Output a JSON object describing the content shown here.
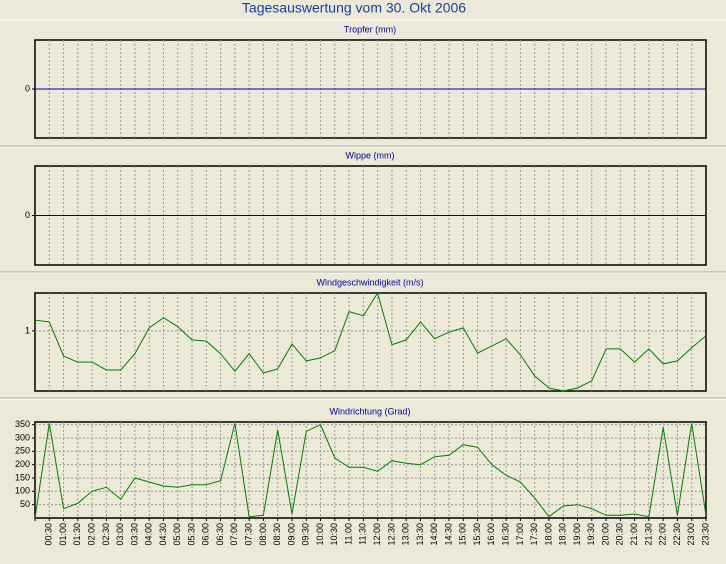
{
  "title": "Tagesauswertung vom 30. Okt 2006",
  "chart_data": [
    {
      "type": "line",
      "title": "Tropfer (mm)",
      "color": "#0000a0",
      "grid": true,
      "ylim": [
        -1,
        1
      ],
      "yticks": [
        0
      ],
      "values": [
        0,
        0,
        0,
        0,
        0,
        0,
        0,
        0,
        0,
        0,
        0,
        0,
        0,
        0,
        0,
        0,
        0,
        0,
        0,
        0,
        0,
        0,
        0,
        0,
        0,
        0,
        0,
        0,
        0,
        0,
        0,
        0,
        0,
        0,
        0,
        0,
        0,
        0,
        0,
        0,
        0,
        0,
        0,
        0,
        0,
        0,
        0,
        0
      ]
    },
    {
      "type": "line",
      "title": "Wippe (mm)",
      "color": "#0000a0",
      "grid": true,
      "ylim": [
        -1,
        1
      ],
      "yticks": [
        0
      ],
      "values": [
        0,
        0,
        0,
        0,
        0,
        0,
        0,
        0,
        0,
        0,
        0,
        0,
        0,
        0,
        0,
        0,
        0,
        0,
        0,
        0,
        0,
        0,
        0,
        0,
        0,
        0,
        0,
        0,
        0,
        0,
        0,
        0,
        0,
        0,
        0,
        0,
        0,
        0,
        0,
        0,
        0,
        0,
        0,
        0,
        0,
        0,
        0,
        0
      ]
    },
    {
      "type": "line",
      "title": "Windgeschwindigkeit (m/s)",
      "color": "#008000",
      "grid": true,
      "ylim": [
        0,
        1.63
      ],
      "yticks": [
        1
      ],
      "values": [
        1.18,
        1.15,
        0.58,
        0.48,
        0.48,
        0.35,
        0.35,
        0.62,
        1.05,
        1.22,
        1.07,
        0.85,
        0.83,
        0.62,
        0.33,
        0.62,
        0.3,
        0.37,
        0.78,
        0.5,
        0.55,
        0.67,
        1.32,
        1.25,
        1.63,
        0.77,
        0.85,
        1.15,
        0.87,
        0.98,
        1.05,
        0.63,
        0.75,
        0.87,
        0.6,
        0.25,
        0.05,
        0,
        0.05,
        0.17,
        0.7,
        0.7,
        0.48,
        0.7,
        0.45,
        0.5,
        0.72,
        0.92
      ]
    },
    {
      "type": "line",
      "title": "Windrichtung (Grad)",
      "color": "#008000",
      "grid": true,
      "ylim": [
        0,
        360
      ],
      "yticks": [
        50,
        100,
        150,
        200,
        250,
        300,
        350
      ],
      "categories": [
        null,
        "00:30",
        "01:00",
        "01:30",
        "02:00",
        "02:30",
        "03:00",
        "03:30",
        "04:00",
        "04:30",
        "05:00",
        "05:30",
        "06:00",
        "06:30",
        "07:00",
        "07:30",
        "08:00",
        "08:30",
        "09:00",
        "09:30",
        "10:00",
        "10:30",
        "11:00",
        "11:30",
        "12:00",
        "12:30",
        "13:00",
        "13:30",
        "14:00",
        "14:30",
        "15:00",
        "15:30",
        "16:00",
        "16:30",
        "17:00",
        "17:30",
        "18:00",
        "18:30",
        "19:00",
        "19:30",
        "20:00",
        "20:30",
        "21:00",
        "21:30",
        "22:00",
        "22:30",
        "23:00",
        "23:30"
      ],
      "values": [
        0,
        355,
        35,
        55,
        100,
        115,
        70,
        150,
        135,
        120,
        115,
        125,
        125,
        140,
        355,
        5,
        10,
        330,
        15,
        325,
        350,
        225,
        190,
        190,
        175,
        215,
        205,
        200,
        230,
        235,
        275,
        265,
        200,
        160,
        135,
        75,
        5,
        45,
        50,
        35,
        10,
        10,
        15,
        5,
        340,
        10,
        355,
        10
      ]
    }
  ]
}
